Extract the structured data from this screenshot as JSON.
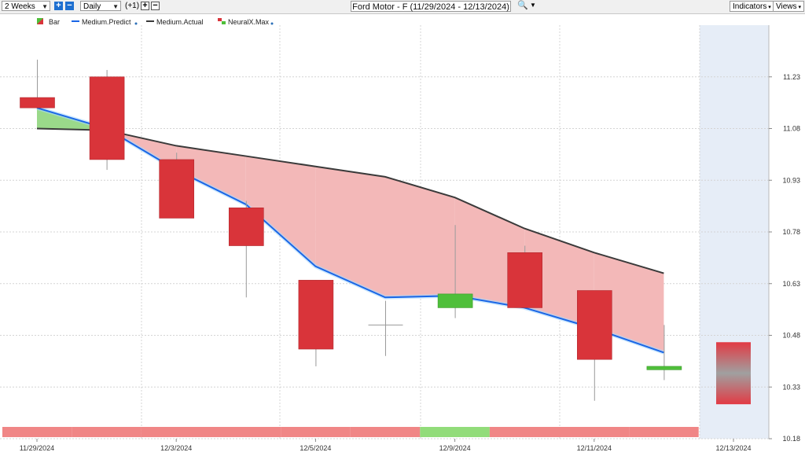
{
  "toolbar": {
    "period": "2 Weeks",
    "interval": "Daily",
    "offset": "(+1)",
    "title": "Ford Motor - F (11/29/2024 - 12/13/2024)",
    "indicators": "Indicators",
    "views": "Views"
  },
  "colors": {
    "down": "#d9343a",
    "up": "#4fbf3a",
    "predict": "#1a66e6",
    "actual": "#3a3a3a",
    "fill_red": "#f3b8b8",
    "fill_green": "#9ad98a",
    "band_red": "#f08686",
    "band_green": "#92dc7a",
    "forecast_bg": "#e6edf7"
  },
  "chart_data": {
    "type": "candlestick",
    "legend": [
      "Bar",
      "Medium.Predict",
      "Medium.Actual",
      "NeuralX.Max"
    ],
    "legend_placement": "top-left",
    "ylim": [
      10.18,
      11.38
    ],
    "y_ticks": [
      11.23,
      11.08,
      10.93,
      10.78,
      10.63,
      10.48,
      10.33,
      10.18
    ],
    "x_ticks": [
      "11/29/2024",
      "12/3/2024",
      "12/5/2024",
      "12/9/2024",
      "12/11/2024",
      "12/13/2024"
    ],
    "grid": true,
    "candles": [
      {
        "open": 11.17,
        "close": 11.14,
        "high": 11.28,
        "low": 11.14
      },
      {
        "open": 11.23,
        "close": 10.99,
        "high": 11.25,
        "low": 10.96
      },
      {
        "open": 10.99,
        "close": 10.82,
        "high": 11.01,
        "low": 10.82
      },
      {
        "open": 10.85,
        "close": 10.74,
        "high": 10.87,
        "low": 10.59
      },
      {
        "open": 10.64,
        "close": 10.44,
        "high": 10.64,
        "low": 10.39
      },
      {
        "open": 10.51,
        "close": 10.51,
        "high": 10.58,
        "low": 10.42
      },
      {
        "open": 10.56,
        "close": 10.6,
        "high": 10.8,
        "low": 10.53
      },
      {
        "open": 10.72,
        "close": 10.56,
        "high": 10.74,
        "low": 10.56
      },
      {
        "open": 10.61,
        "close": 10.41,
        "high": 10.61,
        "low": 10.29
      },
      {
        "open": 10.38,
        "close": 10.39,
        "high": 10.51,
        "low": 10.35
      }
    ],
    "forecast_candle": {
      "open": 10.46,
      "close": 10.28,
      "high": 10.46,
      "low": 10.28
    },
    "medium_predict": [
      11.14,
      11.08,
      10.96,
      10.86,
      10.68,
      10.59,
      10.595,
      10.56,
      10.5,
      10.43
    ],
    "medium_actual": [
      11.08,
      11.075,
      11.03,
      11.0,
      10.97,
      10.94,
      10.88,
      10.79,
      10.72,
      10.66
    ],
    "neuralx_band": [
      "red",
      "red",
      "red",
      "red",
      "red",
      "red",
      "green",
      "red",
      "red",
      "red"
    ]
  }
}
